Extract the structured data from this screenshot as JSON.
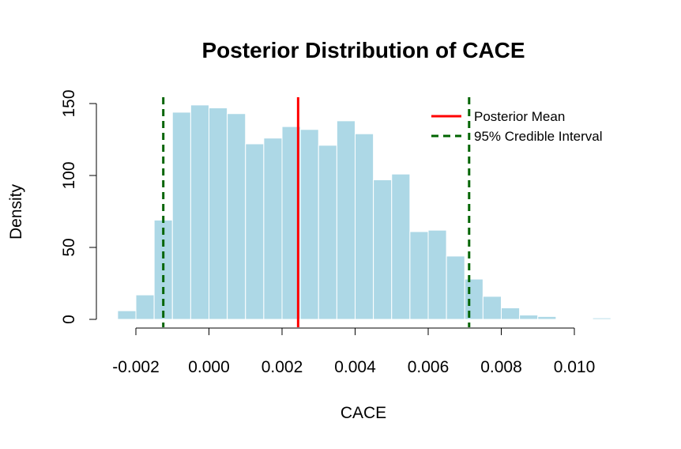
{
  "chart_data": {
    "type": "bar",
    "title": "Posterior Distribution of CACE",
    "xlabel": "CACE",
    "ylabel": "Density",
    "xlim": [
      -0.0026,
      0.011
    ],
    "ylim": [
      0,
      150
    ],
    "x_ticks": [
      -0.002,
      0.0,
      0.002,
      0.004,
      0.006,
      0.008,
      0.01
    ],
    "x_tick_labels": [
      "-0.002",
      "0.000",
      "0.002",
      "0.004",
      "0.006",
      "0.008",
      "0.010"
    ],
    "y_ticks": [
      0,
      50,
      100,
      150
    ],
    "y_tick_labels": [
      "0",
      "50",
      "100",
      "150"
    ],
    "bin_width": 0.0005,
    "bin_starts": [
      -0.0025,
      -0.002,
      -0.0015,
      -0.001,
      -0.0005,
      0.0,
      0.0005,
      0.001,
      0.0015,
      0.002,
      0.0025,
      0.003,
      0.0035,
      0.004,
      0.0045,
      0.005,
      0.0055,
      0.006,
      0.0065,
      0.007,
      0.0075,
      0.008,
      0.0085,
      0.009,
      0.0095,
      0.01,
      0.0105
    ],
    "values": [
      6,
      17,
      69,
      144,
      149,
      147,
      143,
      122,
      126,
      134,
      132,
      121,
      138,
      129,
      97,
      101,
      61,
      62,
      44,
      28,
      16,
      8,
      3,
      2,
      0,
      0,
      1
    ],
    "bar_color": "#add8e6",
    "bar_border": "#ffffff",
    "posterior_mean": 0.00244,
    "credible_interval": [
      -0.00125,
      0.00712
    ],
    "mean_color": "#ff0000",
    "ci_color": "#006400",
    "legend": {
      "position": "top-right",
      "entries": [
        {
          "label": "Posterior Mean",
          "color": "#ff0000",
          "style": "solid"
        },
        {
          "label": "95% Credible Interval",
          "color": "#006400",
          "style": "dashed"
        }
      ]
    }
  }
}
